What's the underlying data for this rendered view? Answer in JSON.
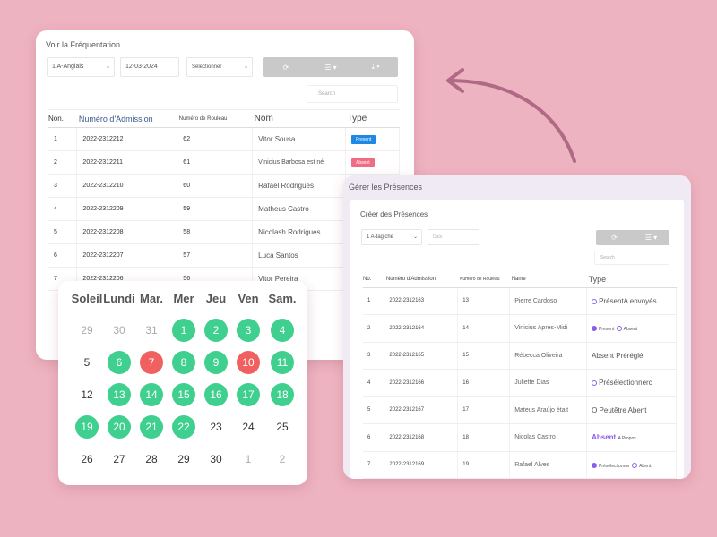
{
  "colors": {
    "background": "#eeb3c0",
    "present": "#3fcf8e",
    "absent": "#f06060",
    "accent": "#8a5cf0"
  },
  "attendance_view": {
    "title": "Voir la Fréquentation",
    "class_select": "1 A-Anglais",
    "date": "12-03-2024",
    "status_select": "Sélectionner",
    "search_placeholder": "Search",
    "icons": [
      "refresh-icon",
      "list-icon",
      "download-icon"
    ],
    "headers": [
      "Non.",
      "Numéro d'Admission",
      "Numéro de Rouleau",
      "Nom",
      "Type"
    ],
    "rows": [
      {
        "no": "1",
        "admission": "2022-2312212",
        "roll": "62",
        "name": "Vitor Sousa",
        "type": "Present"
      },
      {
        "no": "2",
        "admission": "2022-2312211",
        "roll": "61",
        "name": "Vinicius Barbosa est né",
        "type": "Absent"
      },
      {
        "no": "3",
        "admission": "2022-2312210",
        "roll": "60",
        "name": "Rafael Rodrigues",
        "type": ""
      },
      {
        "no": "4",
        "admission": "2022-2312209",
        "roll": "59",
        "name": "Matheus Castro",
        "type": ""
      },
      {
        "no": "5",
        "admission": "2022-2312208",
        "roll": "58",
        "name": "Nicolash Rodrigues",
        "type": ""
      },
      {
        "no": "6",
        "admission": "2022-2312207",
        "roll": "57",
        "name": "Luca Santos",
        "type": ""
      },
      {
        "no": "7",
        "admission": "2022-2312206",
        "roll": "56",
        "name": "Vitor Pereira",
        "type": ""
      }
    ]
  },
  "attendance_manage": {
    "title": "Gérer les Présences",
    "subtitle": "Créer des Présences",
    "class_select": "1 A-tagiche",
    "date_placeholder": "Date",
    "search_placeholder": "Search",
    "headers": [
      "No.",
      "Numéro d'Admission",
      "Numéro de Rouleau",
      "Name",
      "Type"
    ],
    "rows": [
      {
        "no": "1",
        "admission": "2022-2312163",
        "roll": "13",
        "name": "Pierre Cardoso",
        "type": "PrésentA envoyés",
        "style": "dot"
      },
      {
        "no": "2",
        "admission": "2022-2312164",
        "roll": "14",
        "name": "Vinicius Après-Midi",
        "type_a": "Present",
        "type_b": "Absent",
        "style": "pair"
      },
      {
        "no": "3",
        "admission": "2022-2312165",
        "roll": "15",
        "name": "Rébecca Oliveira",
        "type": "Absent Préréglé",
        "style": "plain"
      },
      {
        "no": "4",
        "admission": "2022-2312166",
        "roll": "16",
        "name": "Juliette Dias",
        "type": "Présélectionnerc",
        "style": "dot"
      },
      {
        "no": "5",
        "admission": "2022-2312167",
        "roll": "17",
        "name": "Mateus Araújo était",
        "type": "O Peutêtre Abent",
        "style": "plain"
      },
      {
        "no": "6",
        "admission": "2022-2312168",
        "roll": "18",
        "name": "Nicolas Castro",
        "type_a": "Absent",
        "type_b": "A Propos",
        "style": "pair2"
      },
      {
        "no": "7",
        "admission": "2022-2312169",
        "roll": "19",
        "name": "Rafael Alves",
        "type_a": "Présélectionner",
        "type_b": "Abent.",
        "style": "pair"
      }
    ]
  },
  "calendar": {
    "weekdays": [
      "Soleil",
      "Lundi",
      "Mar.",
      "Mer",
      "Jeu",
      "Ven",
      "Sam."
    ],
    "weeks": [
      [
        {
          "d": "29",
          "s": "m"
        },
        {
          "d": "30",
          "s": "m"
        },
        {
          "d": "31",
          "s": "m"
        },
        {
          "d": "1",
          "s": "g"
        },
        {
          "d": "2",
          "s": "g"
        },
        {
          "d": "3",
          "s": "g"
        },
        {
          "d": "4",
          "s": "g"
        }
      ],
      [
        {
          "d": "5",
          "s": ""
        },
        {
          "d": "6",
          "s": "g"
        },
        {
          "d": "7",
          "s": "r"
        },
        {
          "d": "8",
          "s": "g"
        },
        {
          "d": "9",
          "s": "g"
        },
        {
          "d": "10",
          "s": "r"
        },
        {
          "d": "11",
          "s": "g"
        }
      ],
      [
        {
          "d": "12",
          "s": ""
        },
        {
          "d": "13",
          "s": "g"
        },
        {
          "d": "14",
          "s": "g"
        },
        {
          "d": "15",
          "s": "g"
        },
        {
          "d": "16",
          "s": "g"
        },
        {
          "d": "17",
          "s": "g"
        },
        {
          "d": "18",
          "s": "g"
        }
      ],
      [
        {
          "d": "19",
          "s": "g"
        },
        {
          "d": "20",
          "s": "g"
        },
        {
          "d": "21",
          "s": "g"
        },
        {
          "d": "22",
          "s": "g"
        },
        {
          "d": "23",
          "s": ""
        },
        {
          "d": "24",
          "s": ""
        },
        {
          "d": "25",
          "s": ""
        }
      ],
      [
        {
          "d": "26",
          "s": ""
        },
        {
          "d": "27",
          "s": ""
        },
        {
          "d": "28",
          "s": ""
        },
        {
          "d": "29",
          "s": ""
        },
        {
          "d": "30",
          "s": ""
        },
        {
          "d": "1",
          "s": "m"
        },
        {
          "d": "2",
          "s": "m"
        }
      ]
    ]
  }
}
